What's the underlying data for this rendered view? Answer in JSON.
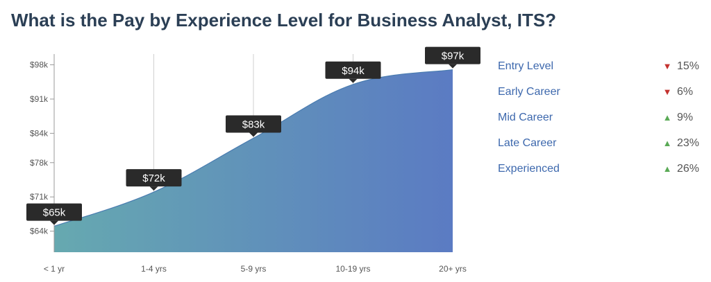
{
  "title": "What is the Pay by Experience Level for Business Analyst, ITS?",
  "chart_data": {
    "type": "area",
    "categories": [
      "< 1 yr",
      "1-4 yrs",
      "5-9 yrs",
      "10-19 yrs",
      "20+ yrs"
    ],
    "values": [
      65,
      72,
      83,
      94,
      97
    ],
    "data_labels": [
      "$65k",
      "$72k",
      "$83k",
      "$94k",
      "$97k"
    ],
    "y_ticks": [
      64,
      71,
      78,
      84,
      91,
      98
    ],
    "y_tick_labels": [
      "$64k",
      "$71k",
      "$78k",
      "$84k",
      "$91k",
      "$98k"
    ],
    "ylim": [
      59.7,
      100.2
    ],
    "vertical_grid": true,
    "fill_gradient": [
      "#66a9b0",
      "#5b7bc3"
    ]
  },
  "legend": [
    {
      "label": "Entry Level",
      "direction": "down",
      "change": "15%"
    },
    {
      "label": "Early Career",
      "direction": "down",
      "change": "6%"
    },
    {
      "label": "Mid Career",
      "direction": "up",
      "change": "9%"
    },
    {
      "label": "Late Career",
      "direction": "up",
      "change": "23%"
    },
    {
      "label": "Experienced",
      "direction": "up",
      "change": "26%"
    }
  ]
}
